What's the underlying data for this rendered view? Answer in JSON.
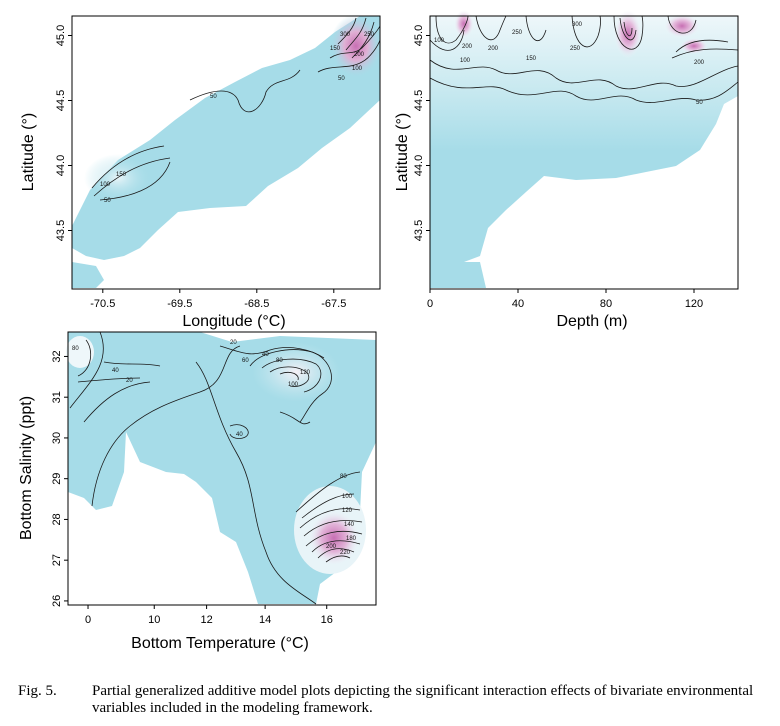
{
  "figure": {
    "caption_number": "Fig. 5.",
    "caption_text": "Partial generalized additive model plots depicting the significant interaction effects of bivariate environmental variables included in the modeling framework."
  },
  "colors": {
    "low": "#a6dce8",
    "mid": "#e8f5f8",
    "high": "#d892c8",
    "peak": "#c870b4",
    "line": "#1a1a1a"
  },
  "chart_data": [
    {
      "type": "heatmap",
      "id": "lon-lat",
      "xlabel": "Longitude (°C)",
      "ylabel": "Latitude (°)",
      "xlim": [
        -70.9,
        -66.9
      ],
      "ylim": [
        43.05,
        45.15
      ],
      "xticks": [
        -70.5,
        -69.5,
        -68.5,
        -67.5
      ],
      "xtick_labels": [
        "-70.5",
        "-69.5",
        "-68.5",
        "-67.5"
      ],
      "yticks": [
        43.5,
        44.0,
        44.5,
        45.0
      ],
      "ytick_labels": [
        "43.5",
        "44.0",
        "44.5",
        "45.0"
      ],
      "contour_labels": [
        "50",
        "100",
        "150",
        "50",
        "50",
        "100",
        "150",
        "200",
        "250",
        "300"
      ]
    },
    {
      "type": "heatmap",
      "id": "depth-lat",
      "xlabel": "Depth (m)",
      "ylabel": "Latitude (°)",
      "xlim": [
        0,
        140
      ],
      "ylim": [
        43.05,
        45.15
      ],
      "xticks": [
        0,
        40,
        80,
        120
      ],
      "xtick_labels": [
        "0",
        "40",
        "80",
        "120"
      ],
      "yticks": [
        43.5,
        44.0,
        44.5,
        45.0
      ],
      "ytick_labels": [
        "43.5",
        "44.0",
        "44.5",
        "45.0"
      ],
      "contour_labels": [
        "100",
        "200",
        "250",
        "200",
        "150",
        "300",
        "250",
        "200",
        "100",
        "50"
      ]
    },
    {
      "type": "heatmap",
      "id": "temp-sal",
      "xlabel": "Bottom Temperature (°C)",
      "ylabel": "Bottom Salinity (ppt)",
      "xlim": [
        -0.5,
        17.5
      ],
      "ylim": [
        25.9,
        32.6
      ],
      "xticks": [
        0,
        10,
        12,
        14,
        16
      ],
      "xtick_labels": [
        "0",
        "10",
        "12",
        "14",
        "16"
      ],
      "yticks": [
        26,
        27,
        28,
        29,
        30,
        31,
        32
      ],
      "ytick_labels": [
        "26",
        "27",
        "28",
        "29",
        "30",
        "31",
        "32"
      ],
      "contour_labels": [
        "20",
        "40",
        "60",
        "80",
        "100",
        "120",
        "40",
        "20",
        "40",
        "80",
        "80",
        "100",
        "120",
        "140",
        "180",
        "200",
        "220"
      ]
    }
  ]
}
